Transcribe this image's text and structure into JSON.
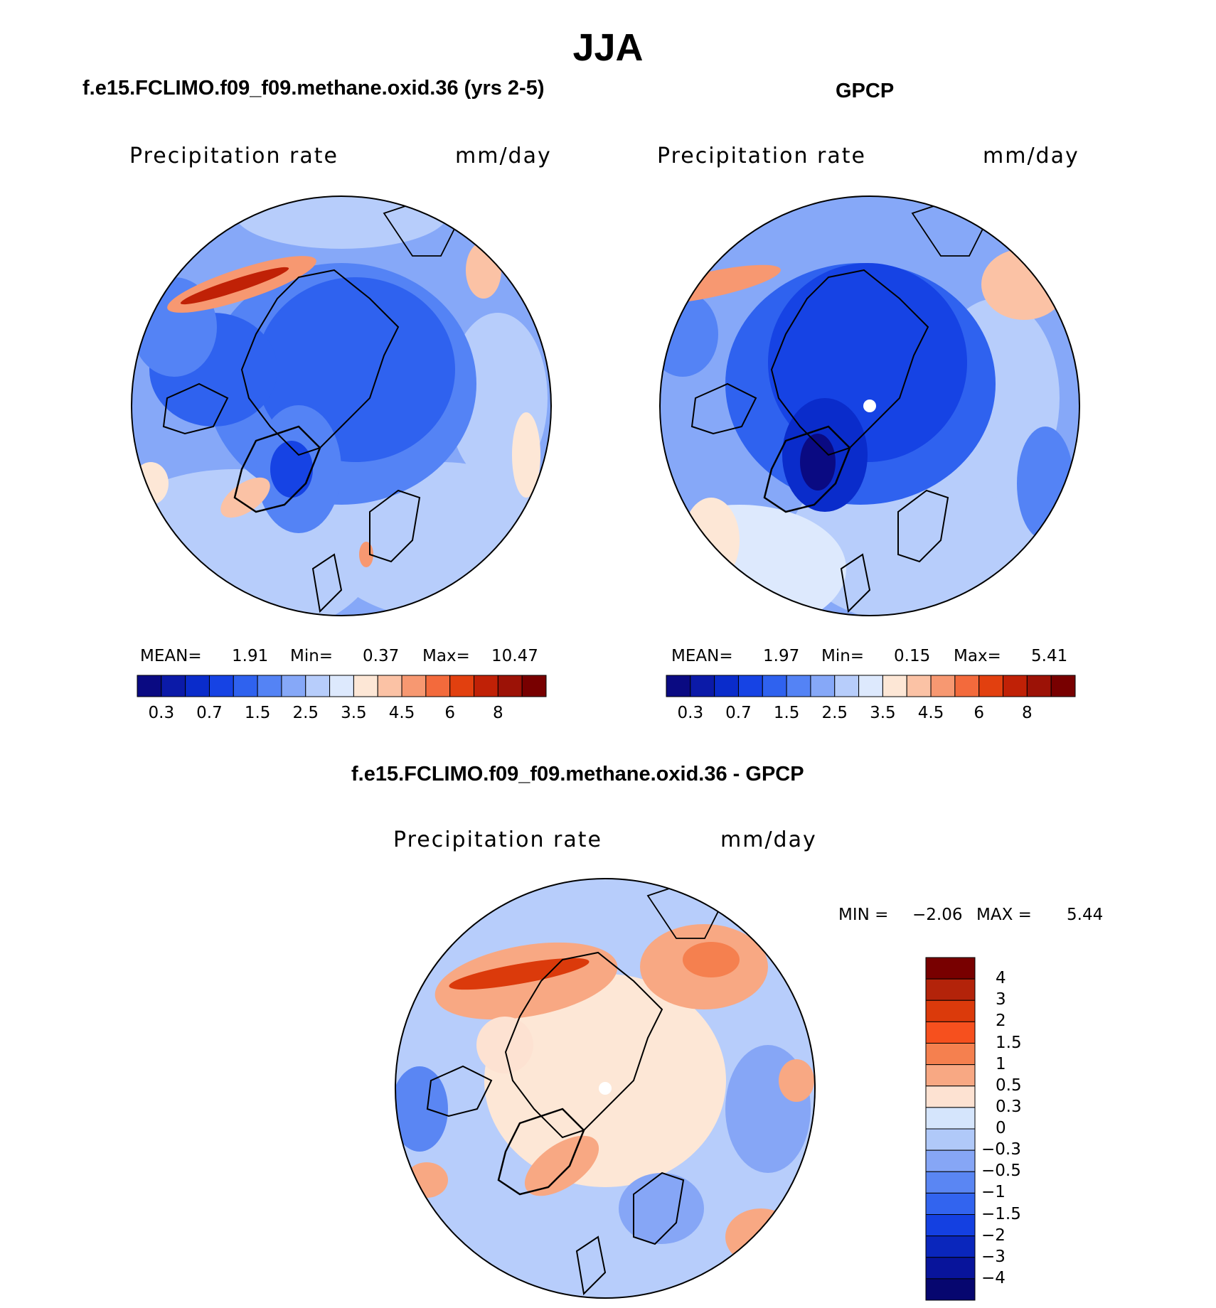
{
  "title": "JJA",
  "panels": [
    {
      "subtitle": "f.e15.FCLIMO.f09_f09.methane.oxid.36 (yrs 2-5)",
      "left_label": "Precipitation  rate",
      "right_label": "mm/day",
      "stats": {
        "mean_label": "MEAN=",
        "mean": "1.91",
        "min_label": "Min=",
        "min": "0.37",
        "max_label": "Max=",
        "max": "10.47"
      }
    },
    {
      "subtitle": "GPCP",
      "left_label": "Precipitation  rate",
      "right_label": "mm/day",
      "stats": {
        "mean_label": "MEAN=",
        "mean": "1.97",
        "min_label": "Min=",
        "min": "0.15",
        "max_label": "Max=",
        "max": "5.41"
      }
    },
    {
      "subtitle": "f.e15.FCLIMO.f09_f09.methane.oxid.36 - GPCP",
      "left_label": "Precipitation  rate",
      "right_label": "mm/day",
      "stats": {
        "min_label": "MIN =",
        "min": "−2.06",
        "max_label": "MAX =",
        "max": "5.44"
      }
    }
  ],
  "colorbar_horizontal": {
    "colors": [
      "#0a0a82",
      "#0b1aa8",
      "#0a2ccb",
      "#1643e4",
      "#2f62ef",
      "#5483f5",
      "#86a8f8",
      "#b7cdfb",
      "#dde9fd",
      "#fde7d6",
      "#fbc2a5",
      "#f79871",
      "#f36a3c",
      "#e2400f",
      "#c02106",
      "#9c1206",
      "#780000"
    ],
    "tick_labels": [
      "0.3",
      "0.7",
      "1.5",
      "2.5",
      "3.5",
      "4.5",
      "6",
      "8"
    ]
  },
  "colorbar_vertical": {
    "colors": [
      "#780000",
      "#b3230a",
      "#db3a0b",
      "#f6501e",
      "#f5804f",
      "#f8a883",
      "#fde2d2",
      "#d5e5fc",
      "#b0c9f9",
      "#86a6f6",
      "#5a86f3",
      "#3264ef",
      "#1440e1",
      "#0a26bc",
      "#08149b",
      "#06066f"
    ],
    "tick_labels": [
      "4",
      "3",
      "2",
      "1.5",
      "1",
      "0.5",
      "0.3",
      "0",
      "−0.3",
      "−0.5",
      "−1",
      "−1.5",
      "−2",
      "−3",
      "−4"
    ]
  },
  "map": {
    "projection": "polar stereographic (north pole)",
    "maps": [
      "model precipitation",
      "GPCP precipitation",
      "difference"
    ]
  }
}
